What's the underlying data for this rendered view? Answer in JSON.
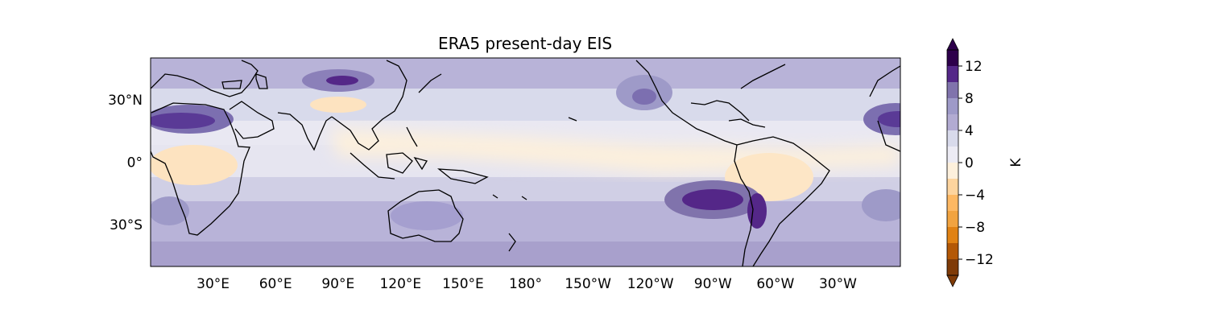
{
  "title": "ERA5 present-day EIS",
  "map": {
    "projection": "PlateCarree",
    "central_longitude": 180,
    "lon_range": [
      0,
      360
    ],
    "lat_range": [
      -50,
      50
    ],
    "coastlines": true,
    "x_ticks": [
      "30°E",
      "60°E",
      "90°E",
      "120°E",
      "150°E",
      "180°",
      "150°W",
      "120°W",
      "90°W",
      "60°W",
      "30°W"
    ],
    "y_ticks": [
      "30°N",
      "0°",
      "30°S"
    ]
  },
  "colorbar": {
    "label": "K",
    "colormap": "PuOr (reversed)",
    "extend": "both",
    "tick_labels": [
      "12",
      "8",
      "4",
      "0",
      "−4",
      "−8",
      "−12"
    ],
    "range": [
      -14,
      14
    ],
    "levels": [
      -14,
      -12,
      -10,
      -8,
      -6,
      -4,
      -2,
      0,
      2,
      4,
      6,
      8,
      10,
      12,
      14
    ],
    "colors": [
      "#7f3b08",
      "#b35806",
      "#e08214",
      "#f1a340",
      "#fdb863",
      "#fdd49e",
      "#fdf0dc",
      "#ecebf4",
      "#d8daeb",
      "#b2abd2",
      "#9e9ac8",
      "#8073ac",
      "#542788",
      "#2d004b"
    ]
  }
}
